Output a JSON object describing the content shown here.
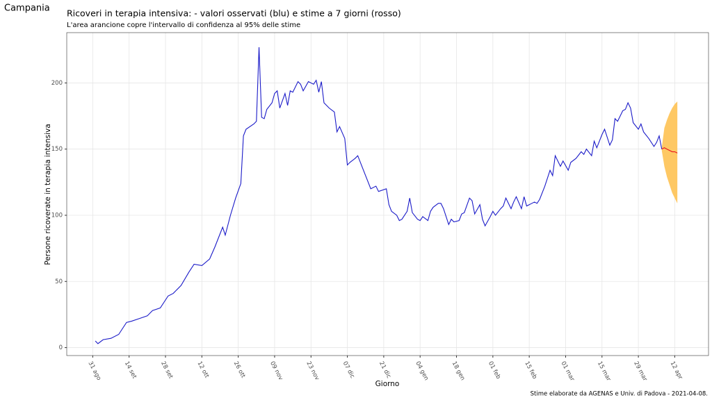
{
  "chart_data": {
    "type": "line",
    "region": "Campania",
    "title": "Ricoveri in terapia intensiva: - valori osservati (blu) e stime a 7 giorni (rosso)",
    "subtitle": "L'area arancione copre l'intervallo di confidenza al 95% delle stime",
    "x_label": "Giorno",
    "y_label": "Persone ricoverate in terapia intensiva",
    "caption": "Stime elaborate da AGENAS e Univ. di Padova - 2021-04-08.",
    "xlim": [
      -10,
      237
    ],
    "ylim": [
      -6,
      238
    ],
    "xticks": [
      {
        "value": 0,
        "label": "31 ago"
      },
      {
        "value": 14,
        "label": "14 set"
      },
      {
        "value": 28,
        "label": "28 set"
      },
      {
        "value": 42,
        "label": "12 ott"
      },
      {
        "value": 56,
        "label": "26 ott"
      },
      {
        "value": 70,
        "label": "09 nov"
      },
      {
        "value": 84,
        "label": "23 nov"
      },
      {
        "value": 98,
        "label": "07 dic"
      },
      {
        "value": 112,
        "label": "21 dic"
      },
      {
        "value": 126,
        "label": "04 gen"
      },
      {
        "value": 140,
        "label": "18 gen"
      },
      {
        "value": 154,
        "label": "01 feb"
      },
      {
        "value": 168,
        "label": "15 feb"
      },
      {
        "value": 182,
        "label": "01 mar"
      },
      {
        "value": 196,
        "label": "15 mar"
      },
      {
        "value": 210,
        "label": "29 mar"
      },
      {
        "value": 224,
        "label": "12 apr"
      }
    ],
    "yticks": [
      0,
      50,
      100,
      150,
      200
    ],
    "grid": true,
    "band": {
      "color": "#fec864",
      "x": [
        219,
        220,
        221,
        222,
        223,
        224,
        225
      ],
      "lower": [
        149,
        137,
        129,
        123,
        117,
        113,
        109
      ],
      "upper": [
        151,
        166,
        172,
        177,
        181,
        184,
        186
      ]
    },
    "series": [
      {
        "color": "#1a1ac8",
        "x": [
          1,
          2,
          4,
          7,
          10,
          13,
          15,
          18,
          21,
          23,
          26,
          29,
          31,
          34,
          37,
          39,
          42,
          45,
          47,
          50,
          51,
          53,
          55,
          57,
          58,
          59,
          62,
          63,
          64,
          65,
          66,
          67,
          69,
          70,
          71,
          72,
          74,
          75,
          76,
          77,
          79,
          80,
          81,
          83,
          85,
          86,
          87,
          88,
          89,
          91,
          93,
          94,
          95,
          97,
          98,
          99,
          101,
          102,
          104,
          105,
          106,
          107,
          109,
          110,
          113,
          114,
          115,
          117,
          118,
          119,
          121,
          122,
          123,
          125,
          126,
          127,
          129,
          130,
          131,
          133,
          134,
          135,
          137,
          138,
          139,
          141,
          142,
          143,
          145,
          146,
          147,
          149,
          150,
          151,
          153,
          154,
          155,
          157,
          158,
          159,
          161,
          162,
          163,
          165,
          166,
          167,
          168,
          170,
          171,
          172,
          174,
          176,
          177,
          178,
          180,
          181,
          183,
          184,
          186,
          188,
          189,
          190,
          192,
          193,
          194,
          196,
          197,
          199,
          200,
          201,
          202,
          204,
          205,
          206,
          207,
          208,
          210,
          211,
          212,
          214,
          216,
          217,
          218,
          219
        ],
        "values": [
          5,
          3,
          6,
          7,
          10,
          19,
          20,
          22,
          24,
          28,
          30,
          39,
          41,
          47,
          57,
          63,
          62,
          67,
          76,
          91,
          85,
          100,
          113,
          124,
          160,
          165,
          169,
          171,
          227,
          174,
          173,
          180,
          185,
          192,
          194,
          181,
          192,
          183,
          194,
          193,
          201,
          199,
          194,
          201,
          199,
          202,
          193,
          201,
          185,
          181,
          178,
          163,
          167,
          158,
          138,
          140,
          143,
          145,
          135,
          130,
          125,
          120,
          122,
          118,
          120,
          108,
          103,
          100,
          96,
          97,
          103,
          113,
          102,
          97,
          96,
          99,
          96,
          103,
          106,
          109,
          109,
          105,
          93,
          97,
          95,
          96,
          101,
          102,
          113,
          111,
          101,
          108,
          97,
          92,
          99,
          103,
          100,
          105,
          107,
          113,
          105,
          110,
          114,
          105,
          114,
          107,
          108,
          110,
          109,
          112,
          122,
          134,
          130,
          145,
          137,
          141,
          134,
          140,
          143,
          148,
          146,
          150,
          145,
          156,
          151,
          161,
          165,
          153,
          157,
          173,
          171,
          179,
          180,
          185,
          181,
          170,
          165,
          169,
          163,
          158,
          152,
          155,
          160,
          150
        ]
      },
      {
        "color": "#e8141e",
        "x": [
          219,
          220,
          221,
          222,
          223,
          224,
          225
        ],
        "values": [
          150,
          151,
          150,
          149,
          148,
          148,
          147
        ]
      }
    ]
  }
}
